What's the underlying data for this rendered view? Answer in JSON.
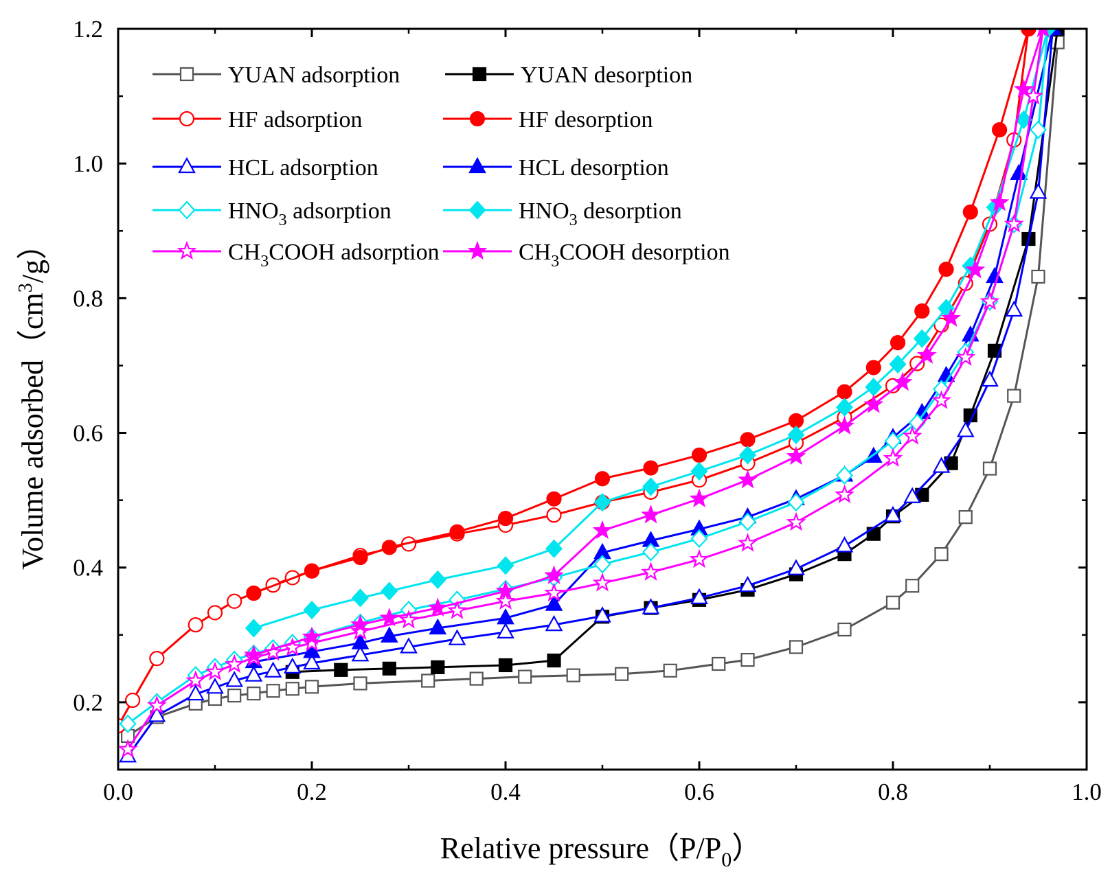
{
  "chart_data": {
    "type": "line",
    "title": "",
    "xlabel": {
      "main": "Relative pressure",
      "paren_open": "（",
      "var": "P/P",
      "sub": "0",
      "paren_close": "）"
    },
    "ylabel": {
      "main": "Volume adsorbed",
      "paren_open": "（",
      "unit_pre": "cm",
      "sup": "3",
      "unit_post": "/g",
      "paren_close": "）"
    },
    "xlim": [
      0.0,
      1.0
    ],
    "ylim": [
      0.1,
      1.2
    ],
    "xticks": [
      "0.0",
      "0.2",
      "0.4",
      "0.6",
      "0.8",
      "1.0"
    ],
    "yticks": [
      "0.2",
      "0.4",
      "0.6",
      "0.8",
      "1.0",
      "1.2"
    ],
    "legend_position": "top-left",
    "series": [
      {
        "name": "YUAN adsorption",
        "label": {
          "pre": "YUAN adsorption"
        },
        "color": "#555555",
        "marker": "square",
        "filled": false,
        "x": [
          0.01,
          0.04,
          0.08,
          0.1,
          0.12,
          0.14,
          0.16,
          0.18,
          0.2,
          0.25,
          0.32,
          0.37,
          0.42,
          0.47,
          0.52,
          0.57,
          0.62,
          0.65,
          0.7,
          0.75,
          0.8,
          0.82,
          0.85,
          0.875,
          0.9,
          0.925,
          0.95,
          0.97
        ],
        "y": [
          0.15,
          0.178,
          0.198,
          0.205,
          0.21,
          0.213,
          0.217,
          0.22,
          0.223,
          0.228,
          0.232,
          0.235,
          0.238,
          0.24,
          0.242,
          0.247,
          0.257,
          0.263,
          0.282,
          0.308,
          0.348,
          0.373,
          0.42,
          0.475,
          0.547,
          0.655,
          0.832,
          1.18
        ]
      },
      {
        "name": "YUAN desorption",
        "label": {
          "pre": "YUAN desorption"
        },
        "color": "#000000",
        "marker": "square",
        "filled": true,
        "x": [
          0.97,
          0.94,
          0.905,
          0.88,
          0.86,
          0.83,
          0.8,
          0.78,
          0.75,
          0.7,
          0.65,
          0.6,
          0.55,
          0.5,
          0.45,
          0.4,
          0.33,
          0.28,
          0.23,
          0.18
        ],
        "y": [
          1.2,
          0.888,
          0.722,
          0.626,
          0.555,
          0.508,
          0.476,
          0.45,
          0.42,
          0.39,
          0.367,
          0.352,
          0.34,
          0.327,
          0.262,
          0.255,
          0.252,
          0.25,
          0.248,
          0.245
        ]
      },
      {
        "name": "HF adsorption",
        "label": {
          "pre": "HF adsorption"
        },
        "color": "#ff0000",
        "marker": "circle",
        "filled": false,
        "x": [
          0.0,
          0.015,
          0.04,
          0.08,
          0.1,
          0.12,
          0.14,
          0.16,
          0.18,
          0.2,
          0.25,
          0.3,
          0.35,
          0.4,
          0.45,
          0.5,
          0.55,
          0.6,
          0.65,
          0.7,
          0.75,
          0.8,
          0.825,
          0.85,
          0.875,
          0.9,
          0.925,
          0.94
        ],
        "y": [
          0.165,
          0.203,
          0.265,
          0.315,
          0.333,
          0.35,
          0.362,
          0.374,
          0.385,
          0.395,
          0.418,
          0.435,
          0.45,
          0.463,
          0.478,
          0.497,
          0.512,
          0.53,
          0.555,
          0.585,
          0.623,
          0.67,
          0.703,
          0.76,
          0.822,
          0.91,
          1.035,
          1.2
        ]
      },
      {
        "name": "HF desorption",
        "label": {
          "pre": "HF desorption"
        },
        "color": "#ff0000",
        "marker": "circle",
        "filled": true,
        "x": [
          0.94,
          0.91,
          0.88,
          0.855,
          0.83,
          0.805,
          0.78,
          0.75,
          0.7,
          0.65,
          0.6,
          0.55,
          0.5,
          0.45,
          0.4,
          0.35,
          0.28,
          0.25,
          0.2,
          0.14
        ],
        "y": [
          1.2,
          1.05,
          0.928,
          0.843,
          0.781,
          0.734,
          0.697,
          0.661,
          0.618,
          0.59,
          0.567,
          0.548,
          0.532,
          0.502,
          0.473,
          0.453,
          0.43,
          0.415,
          0.395,
          0.362
        ]
      },
      {
        "name": "HCL adsorption",
        "label": {
          "pre": "HCL adsorption"
        },
        "color": "#0000ff",
        "marker": "triangle",
        "filled": false,
        "x": [
          0.01,
          0.04,
          0.08,
          0.1,
          0.12,
          0.14,
          0.16,
          0.18,
          0.2,
          0.25,
          0.3,
          0.35,
          0.4,
          0.45,
          0.5,
          0.55,
          0.6,
          0.65,
          0.7,
          0.75,
          0.8,
          0.82,
          0.85,
          0.875,
          0.9,
          0.925,
          0.95,
          0.965
        ],
        "y": [
          0.12,
          0.18,
          0.212,
          0.222,
          0.232,
          0.24,
          0.246,
          0.252,
          0.258,
          0.27,
          0.282,
          0.294,
          0.304,
          0.315,
          0.328,
          0.34,
          0.355,
          0.373,
          0.398,
          0.432,
          0.477,
          0.505,
          0.55,
          0.603,
          0.678,
          0.782,
          0.957,
          1.2
        ]
      },
      {
        "name": "HCL desorption",
        "label": {
          "pre": "HCL desorption"
        },
        "color": "#0000ff",
        "marker": "triangle",
        "filled": true,
        "x": [
          0.965,
          0.93,
          0.905,
          0.88,
          0.855,
          0.83,
          0.8,
          0.78,
          0.75,
          0.7,
          0.65,
          0.6,
          0.55,
          0.5,
          0.45,
          0.4,
          0.33,
          0.28,
          0.25,
          0.2,
          0.14
        ],
        "y": [
          1.2,
          0.985,
          0.832,
          0.745,
          0.685,
          0.63,
          0.593,
          0.565,
          0.537,
          0.502,
          0.475,
          0.457,
          0.44,
          0.422,
          0.345,
          0.325,
          0.31,
          0.298,
          0.288,
          0.275,
          0.26
        ]
      },
      {
        "name": "HNO3 adsorption",
        "label": {
          "pre": "HNO",
          "sub": "3",
          "post": " adsorption"
        },
        "color": "#00e5ee",
        "marker": "diamond",
        "filled": false,
        "x": [
          0.01,
          0.04,
          0.08,
          0.1,
          0.12,
          0.14,
          0.16,
          0.18,
          0.2,
          0.25,
          0.3,
          0.35,
          0.4,
          0.45,
          0.5,
          0.55,
          0.6,
          0.65,
          0.7,
          0.75,
          0.8,
          0.825,
          0.85,
          0.875,
          0.9,
          0.925,
          0.95,
          0.96
        ],
        "y": [
          0.168,
          0.2,
          0.24,
          0.252,
          0.263,
          0.272,
          0.28,
          0.288,
          0.297,
          0.318,
          0.337,
          0.352,
          0.368,
          0.385,
          0.405,
          0.423,
          0.443,
          0.468,
          0.497,
          0.537,
          0.588,
          0.615,
          0.665,
          0.72,
          0.795,
          0.91,
          1.05,
          1.2
        ]
      },
      {
        "name": "HNO3 desorption",
        "label": {
          "pre": "HNO",
          "sub": "3",
          "post": " desorption"
        },
        "color": "#00e5ee",
        "marker": "diamond",
        "filled": true,
        "x": [
          0.96,
          0.935,
          0.905,
          0.88,
          0.855,
          0.83,
          0.805,
          0.78,
          0.75,
          0.7,
          0.65,
          0.6,
          0.55,
          0.5,
          0.45,
          0.4,
          0.33,
          0.28,
          0.25,
          0.2,
          0.14
        ],
        "y": [
          1.2,
          1.065,
          0.935,
          0.848,
          0.785,
          0.74,
          0.702,
          0.668,
          0.638,
          0.597,
          0.567,
          0.543,
          0.52,
          0.497,
          0.428,
          0.403,
          0.382,
          0.365,
          0.355,
          0.337,
          0.31
        ]
      },
      {
        "name": "CH3COOH adsorption",
        "label": {
          "pre": "CH",
          "sub": "3",
          "post": "COOH adsorption"
        },
        "color": "#ff00ff",
        "marker": "star",
        "filled": false,
        "x": [
          0.01,
          0.04,
          0.08,
          0.1,
          0.12,
          0.14,
          0.16,
          0.18,
          0.2,
          0.25,
          0.3,
          0.35,
          0.4,
          0.45,
          0.5,
          0.55,
          0.6,
          0.65,
          0.7,
          0.75,
          0.8,
          0.82,
          0.85,
          0.875,
          0.9,
          0.925,
          0.945,
          0.955
        ],
        "y": [
          0.13,
          0.195,
          0.232,
          0.245,
          0.256,
          0.266,
          0.274,
          0.281,
          0.288,
          0.305,
          0.322,
          0.336,
          0.35,
          0.362,
          0.377,
          0.393,
          0.412,
          0.436,
          0.467,
          0.508,
          0.562,
          0.595,
          0.648,
          0.712,
          0.795,
          0.91,
          1.1,
          1.2
        ]
      },
      {
        "name": "CH3COOH desorption",
        "label": {
          "pre": "CH",
          "sub": "3",
          "post": "COOH desorption"
        },
        "color": "#ff00ff",
        "marker": "star",
        "filled": true,
        "x": [
          0.955,
          0.935,
          0.91,
          0.885,
          0.86,
          0.835,
          0.81,
          0.78,
          0.75,
          0.7,
          0.65,
          0.6,
          0.55,
          0.5,
          0.45,
          0.4,
          0.33,
          0.28,
          0.25,
          0.2,
          0.14
        ],
        "y": [
          1.2,
          1.11,
          0.942,
          0.842,
          0.77,
          0.715,
          0.675,
          0.642,
          0.61,
          0.565,
          0.53,
          0.502,
          0.478,
          0.455,
          0.388,
          0.365,
          0.34,
          0.325,
          0.315,
          0.297,
          0.27
        ]
      }
    ]
  }
}
